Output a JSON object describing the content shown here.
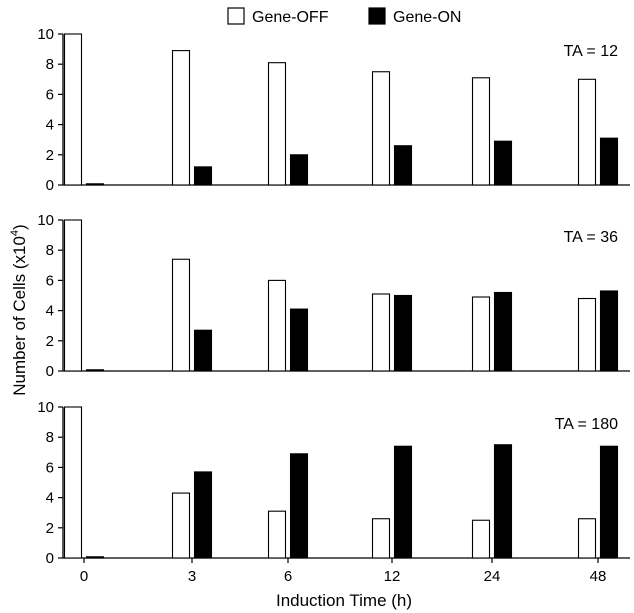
{
  "chart_data": {
    "type": "bar",
    "xlabel": "Induction Time (h)",
    "ylabel": "Number of Cells (x10",
    "ylabel_superscript": "4",
    "ylabel_suffix": ")",
    "ylim": [
      0,
      10
    ],
    "yticks": [
      "0",
      "2",
      "4",
      "6",
      "8",
      "10"
    ],
    "categories": [
      "0",
      "3",
      "6",
      "12",
      "24",
      "48"
    ],
    "legend": {
      "position": "top",
      "entries": [
        {
          "name": "Gene-OFF",
          "color": "#ffffff"
        },
        {
          "name": "Gene-ON",
          "color": "#000000"
        }
      ]
    },
    "panels": [
      {
        "label": "TA = 12",
        "series": [
          {
            "name": "Gene-OFF",
            "values": [
              10.0,
              8.9,
              8.1,
              7.5,
              7.1,
              7.0
            ]
          },
          {
            "name": "Gene-ON",
            "values": [
              0.05,
              1.2,
              2.0,
              2.6,
              2.9,
              3.1
            ]
          }
        ]
      },
      {
        "label": "TA = 36",
        "series": [
          {
            "name": "Gene-OFF",
            "values": [
              10.0,
              7.4,
              6.0,
              5.1,
              4.9,
              4.8
            ]
          },
          {
            "name": "Gene-ON",
            "values": [
              0.05,
              2.7,
              4.1,
              5.0,
              5.2,
              5.3
            ]
          }
        ]
      },
      {
        "label": "TA = 180",
        "series": [
          {
            "name": "Gene-OFF",
            "values": [
              10.0,
              4.3,
              3.1,
              2.6,
              2.5,
              2.6
            ]
          },
          {
            "name": "Gene-ON",
            "values": [
              0.05,
              5.7,
              6.9,
              7.4,
              7.5,
              7.4
            ]
          }
        ]
      }
    ]
  }
}
